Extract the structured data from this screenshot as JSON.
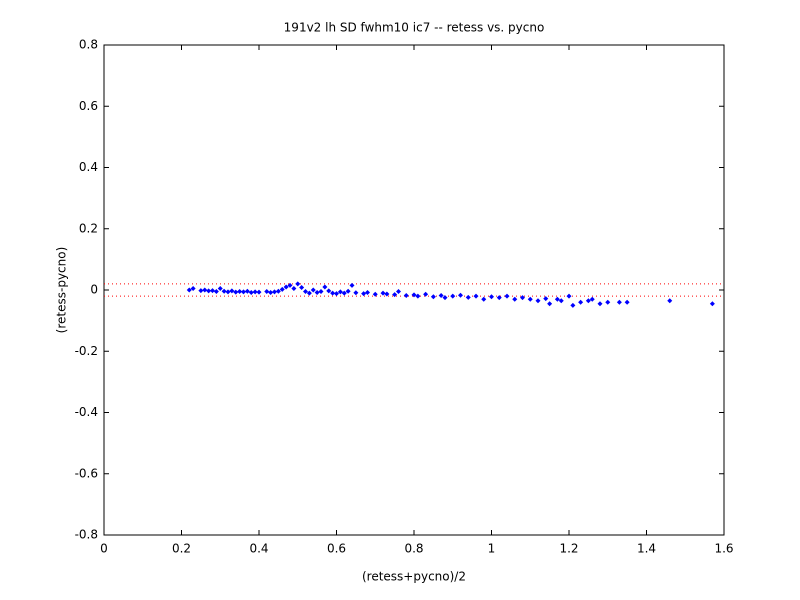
{
  "chart_data": {
    "type": "scatter",
    "title": "191v2 lh SD fwhm10 ic7 -- retess vs. pycno",
    "x_label": "(retess+pycno)/2",
    "y_label": "(retess-pycno)",
    "color": "#0000ff",
    "x": [
      0.22,
      0.23,
      0.25,
      0.26,
      0.27,
      0.28,
      0.29,
      0.3,
      0.31,
      0.32,
      0.33,
      0.34,
      0.35,
      0.36,
      0.37,
      0.38,
      0.39,
      0.4,
      0.42,
      0.43,
      0.44,
      0.45,
      0.46,
      0.47,
      0.48,
      0.49,
      0.5,
      0.51,
      0.52,
      0.53,
      0.54,
      0.55,
      0.56,
      0.57,
      0.58,
      0.59,
      0.6,
      0.61,
      0.62,
      0.63,
      0.64,
      0.65,
      0.67,
      0.68,
      0.7,
      0.72,
      0.73,
      0.75,
      0.76,
      0.78,
      0.8,
      0.81,
      0.83,
      0.85,
      0.87,
      0.88,
      0.9,
      0.92,
      0.94,
      0.96,
      0.98,
      1.0,
      1.02,
      1.04,
      1.06,
      1.08,
      1.1,
      1.12,
      1.14,
      1.15,
      1.17,
      1.18,
      1.2,
      1.21,
      1.23,
      1.25,
      1.26,
      1.28,
      1.3,
      1.33,
      1.35,
      1.46,
      1.57
    ],
    "values": [
      0.0,
      0.005,
      -0.002,
      0.0,
      -0.003,
      -0.002,
      -0.005,
      0.005,
      -0.004,
      -0.006,
      -0.003,
      -0.007,
      -0.005,
      -0.006,
      -0.004,
      -0.008,
      -0.006,
      -0.007,
      -0.005,
      -0.008,
      -0.006,
      -0.004,
      0.002,
      0.01,
      0.015,
      0.005,
      0.02,
      0.008,
      -0.005,
      -0.01,
      0.0,
      -0.008,
      -0.005,
      0.01,
      -0.003,
      -0.01,
      -0.012,
      -0.006,
      -0.01,
      -0.004,
      0.015,
      -0.009,
      -0.012,
      -0.008,
      -0.014,
      -0.01,
      -0.013,
      -0.015,
      -0.005,
      -0.018,
      -0.016,
      -0.02,
      -0.014,
      -0.022,
      -0.018,
      -0.025,
      -0.02,
      -0.017,
      -0.024,
      -0.02,
      -0.03,
      -0.022,
      -0.025,
      -0.02,
      -0.03,
      -0.025,
      -0.03,
      -0.035,
      -0.028,
      -0.045,
      -0.03,
      -0.035,
      -0.02,
      -0.05,
      -0.04,
      -0.035,
      -0.03,
      -0.045,
      -0.04,
      -0.04,
      -0.04,
      -0.035,
      -0.045
    ],
    "reference_lines": [
      0.02,
      -0.02
    ],
    "reference_color": "#ff0000",
    "xlim": [
      0,
      1.6
    ],
    "ylim": [
      -0.8,
      0.8
    ],
    "xticks": [
      0,
      0.2,
      0.4,
      0.6,
      0.8,
      1,
      1.2,
      1.4,
      1.6
    ],
    "yticks": [
      -0.8,
      -0.6,
      -0.4,
      -0.2,
      0,
      0.2,
      0.4,
      0.6,
      0.8
    ]
  }
}
